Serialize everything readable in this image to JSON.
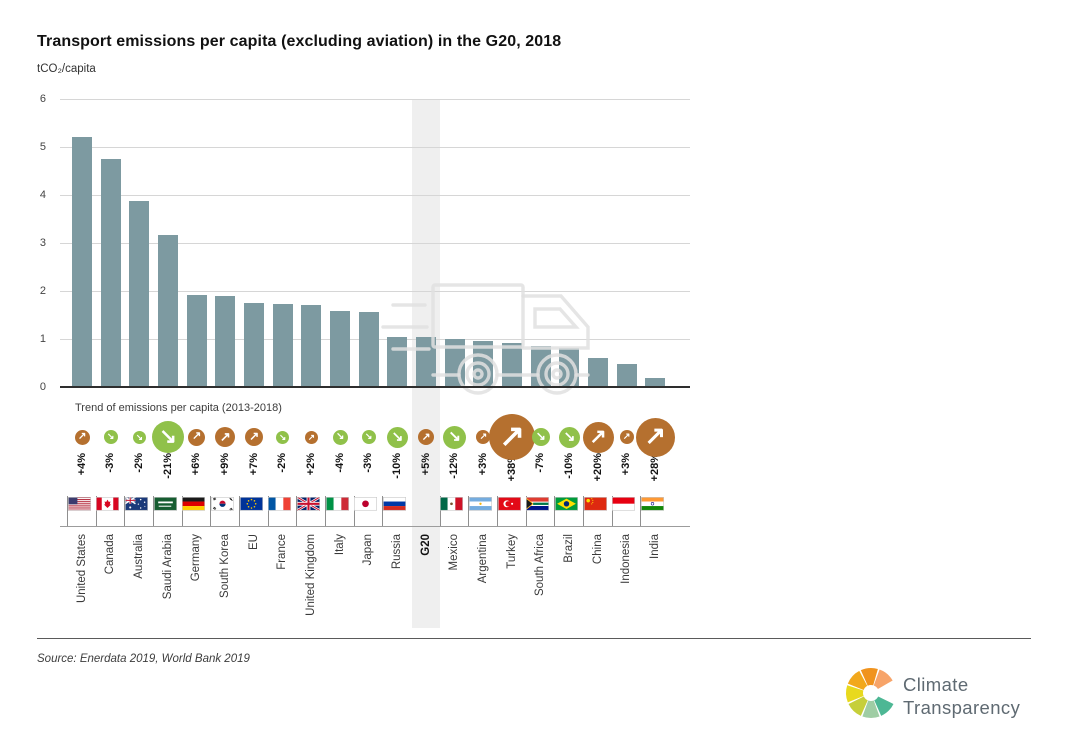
{
  "title": "Transport emissions per capita (excluding aviation) in the G20, 2018",
  "unit_label": "tCO₂/capita",
  "trend_label": "Trend of emissions per capita (2013-2018)",
  "source": "Source: Enerdata 2019, World Bank 2019",
  "logo": {
    "line1": "Climate",
    "line2": "Transparency",
    "segment_colors": [
      "#f7a469",
      "#f0931e",
      "#f2a81c",
      "#e8d91d",
      "#c6cf3a",
      "#9fcda4",
      "#4db794"
    ]
  },
  "colors": {
    "bar": "#7d9aa1",
    "trend_up": "#b5702f",
    "trend_down": "#90c14a",
    "highlight_band": "#efefef",
    "grid": "#d6d6d6",
    "axis": "#2e2e2e",
    "truck": "rgba(224,224,224,0.85)"
  },
  "chart_data": {
    "type": "bar",
    "title": "Transport emissions per capita (excluding aviation) in the G20, 2018",
    "xlabel": "",
    "ylabel": "tCO₂/capita",
    "ylim": [
      0,
      6
    ],
    "yticks": [
      0,
      1,
      2,
      3,
      4,
      5,
      6
    ],
    "grid": "horizontal",
    "legend": "none",
    "highlight_category": "G20",
    "categories": [
      "United States",
      "Canada",
      "Australia",
      "Saudi Arabia",
      "Germany",
      "South Korea",
      "EU",
      "France",
      "United Kingdom",
      "Italy",
      "Japan",
      "Russia",
      "G20",
      "Mexico",
      "Argentina",
      "Turkey",
      "South Africa",
      "Brazil",
      "China",
      "Indonesia",
      "India"
    ],
    "values": [
      5.2,
      4.75,
      3.87,
      3.17,
      1.91,
      1.9,
      1.74,
      1.72,
      1.7,
      1.58,
      1.56,
      1.04,
      1.04,
      1.01,
      0.95,
      0.91,
      0.86,
      0.82,
      0.6,
      0.47,
      0.18
    ],
    "trend_pct": [
      "+4%",
      "-3%",
      "-2%",
      "-21%",
      "+6%",
      "+9%",
      "+7%",
      "-2%",
      "+2%",
      "-4%",
      "-3%",
      "-10%",
      "+5%",
      "-12%",
      "+3%",
      "+38%",
      "-7%",
      "-10%",
      "+20%",
      "+3%",
      "+28%"
    ],
    "flags": [
      "us",
      "ca",
      "au",
      "sa",
      "de",
      "kr",
      "eu",
      "fr",
      "gb",
      "it",
      "jp",
      "ru",
      null,
      "mx",
      "ar",
      "tr",
      "za",
      "br",
      "cn",
      "id",
      "in"
    ]
  }
}
